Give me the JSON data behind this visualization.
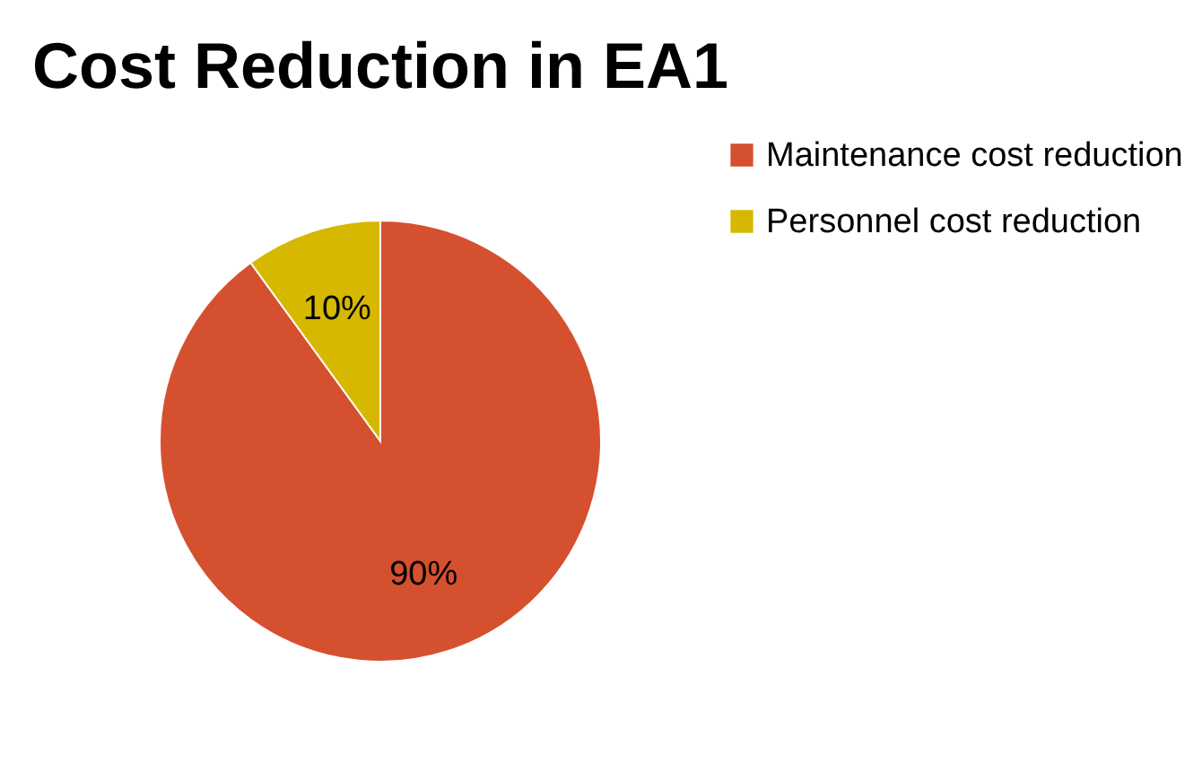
{
  "chart_data": {
    "type": "pie",
    "title": "Cost Reduction in EA1",
    "categories": [
      "Maintenance cost reduction",
      "Personnel cost reduction"
    ],
    "values": [
      90,
      10
    ],
    "colors": [
      "#d5502f",
      "#d6b800"
    ],
    "value_labels": [
      "90%",
      "10%"
    ],
    "legend": "right"
  }
}
